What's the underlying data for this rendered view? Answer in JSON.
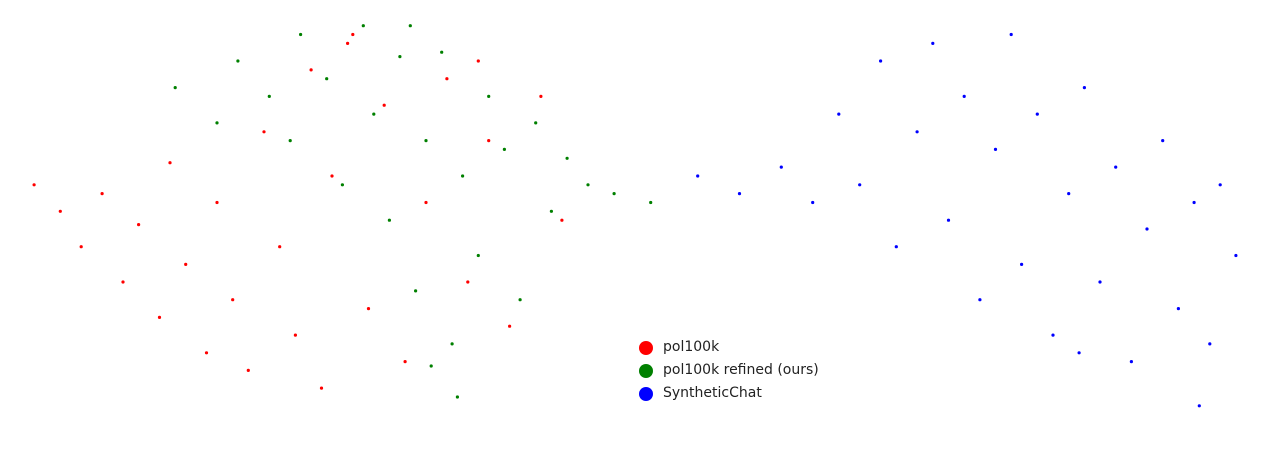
{
  "chart_data": {
    "type": "scatter",
    "title": "",
    "xlabel": "",
    "ylabel": "",
    "axes_visible": false,
    "grid": false,
    "legend_position": "center-bottom",
    "series": [
      {
        "name": "pol100k",
        "color": "#ff0000",
        "points": [
          [
            -9.5,
            1.0
          ],
          [
            -9.0,
            0.4
          ],
          [
            -8.6,
            -0.4
          ],
          [
            -8.2,
            0.8
          ],
          [
            -7.8,
            -1.2
          ],
          [
            -7.5,
            0.1
          ],
          [
            -7.1,
            -2.0
          ],
          [
            -6.9,
            1.5
          ],
          [
            -6.6,
            -0.8
          ],
          [
            -6.2,
            -2.8
          ],
          [
            -6.0,
            0.6
          ],
          [
            -5.7,
            -1.6
          ],
          [
            -5.4,
            -3.2
          ],
          [
            -5.1,
            2.2
          ],
          [
            -4.8,
            -0.4
          ],
          [
            -4.5,
            -2.4
          ],
          [
            -4.2,
            3.6
          ],
          [
            -4.0,
            -3.6
          ],
          [
            -3.8,
            1.2
          ],
          [
            -3.5,
            4.2
          ],
          [
            -3.1,
            -1.8
          ],
          [
            -2.8,
            2.8
          ],
          [
            -2.4,
            -3.0
          ],
          [
            -2.0,
            0.6
          ],
          [
            -1.6,
            3.4
          ],
          [
            -1.2,
            -1.2
          ],
          [
            -0.8,
            2.0
          ],
          [
            -0.4,
            -2.2
          ],
          [
            0.2,
            3.0
          ],
          [
            0.6,
            0.2
          ],
          [
            -3.4,
            4.4
          ],
          [
            -1.0,
            3.8
          ]
        ]
      },
      {
        "name": "pol100k refined (ours)",
        "color": "#008000",
        "points": [
          [
            -6.8,
            3.2
          ],
          [
            -6.0,
            2.4
          ],
          [
            -5.6,
            3.8
          ],
          [
            -5.0,
            3.0
          ],
          [
            -4.4,
            4.4
          ],
          [
            -4.6,
            2.0
          ],
          [
            -3.9,
            3.4
          ],
          [
            -3.6,
            1.0
          ],
          [
            -3.2,
            4.6
          ],
          [
            -3.0,
            2.6
          ],
          [
            -2.7,
            0.2
          ],
          [
            -2.5,
            3.9
          ],
          [
            -2.2,
            -1.4
          ],
          [
            -2.0,
            2.0
          ],
          [
            -1.7,
            4.0
          ],
          [
            -1.5,
            -2.6
          ],
          [
            -1.3,
            1.2
          ],
          [
            -1.0,
            -0.6
          ],
          [
            -0.8,
            3.0
          ],
          [
            -0.5,
            1.8
          ],
          [
            -0.2,
            -1.6
          ],
          [
            0.1,
            2.4
          ],
          [
            0.4,
            0.4
          ],
          [
            0.7,
            1.6
          ],
          [
            1.1,
            1.0
          ],
          [
            1.6,
            0.8
          ],
          [
            2.3,
            0.6
          ],
          [
            -1.4,
            -3.8
          ],
          [
            -1.9,
            -3.1
          ],
          [
            -2.3,
            4.6
          ]
        ]
      },
      {
        "name": "SyntheticChat",
        "color": "#0000ff",
        "points": [
          [
            3.2,
            1.2
          ],
          [
            4.0,
            0.8
          ],
          [
            4.8,
            1.4
          ],
          [
            5.4,
            0.6
          ],
          [
            5.9,
            2.6
          ],
          [
            6.3,
            1.0
          ],
          [
            6.7,
            3.8
          ],
          [
            7.0,
            -0.4
          ],
          [
            7.4,
            2.2
          ],
          [
            7.7,
            4.2
          ],
          [
            8.0,
            0.2
          ],
          [
            8.3,
            3.0
          ],
          [
            8.6,
            -1.6
          ],
          [
            8.9,
            1.8
          ],
          [
            9.2,
            4.4
          ],
          [
            9.4,
            -0.8
          ],
          [
            9.7,
            2.6
          ],
          [
            10.0,
            -2.4
          ],
          [
            10.3,
            0.8
          ],
          [
            10.6,
            3.2
          ],
          [
            10.9,
            -1.2
          ],
          [
            11.2,
            1.4
          ],
          [
            11.5,
            -3.0
          ],
          [
            11.8,
            0.0
          ],
          [
            12.1,
            2.0
          ],
          [
            12.4,
            -1.8
          ],
          [
            12.7,
            0.6
          ],
          [
            13.0,
            -2.6
          ],
          [
            13.2,
            1.0
          ],
          [
            13.5,
            -0.6
          ],
          [
            12.8,
            -4.0
          ],
          [
            10.5,
            -2.8
          ]
        ]
      }
    ]
  }
}
